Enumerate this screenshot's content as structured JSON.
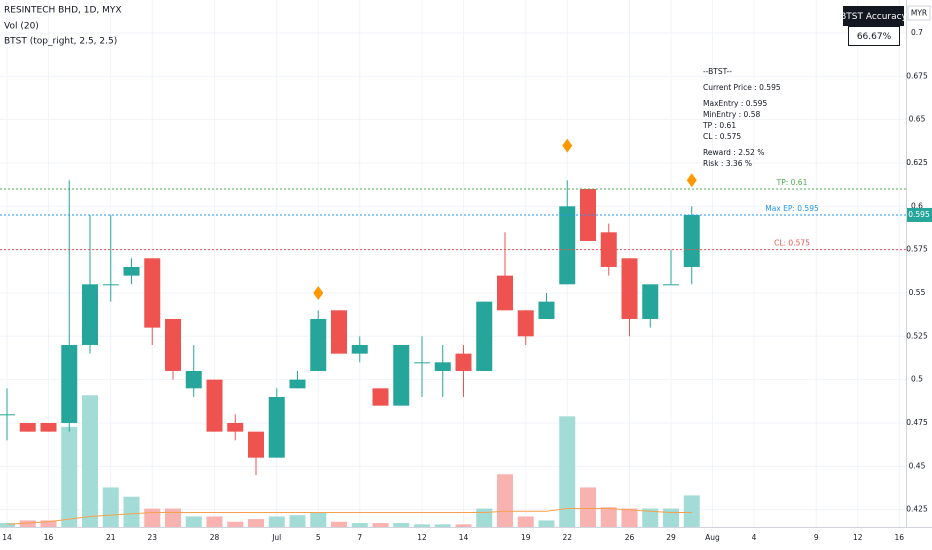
{
  "chart_data": {
    "type": "candlestick",
    "title": "RESINTECH BHD, 1D, MYX",
    "indicators": [
      "Vol (20)",
      "BTST (top_right, 2.5, 2.5)"
    ],
    "currency": "MYR",
    "categories": [
      "14",
      null,
      "16",
      null,
      null,
      "21",
      null,
      "23",
      null,
      null,
      "28",
      null,
      null,
      "Jul",
      null,
      "5",
      null,
      "7",
      null,
      null,
      "12",
      null,
      "14",
      null,
      null,
      "19",
      null,
      "22",
      null,
      null,
      "26",
      null,
      "29",
      null,
      "Aug",
      null,
      "4",
      null,
      null,
      "9",
      null,
      "12",
      null,
      "16"
    ],
    "open": [
      0.48,
      0.475,
      0.475,
      0.475,
      0.52,
      0.555,
      0.56,
      0.57,
      0.535,
      0.495,
      0.5,
      0.475,
      0.47,
      0.455,
      0.495,
      0.505,
      0.54,
      0.515,
      0.495,
      0.485,
      0.51,
      0.505,
      0.515,
      0.505,
      0.56,
      0.54,
      0.535,
      0.555,
      0.61,
      0.585,
      0.57,
      0.535,
      0.555,
      0.565,
      null,
      null,
      null,
      null,
      null,
      null,
      null,
      null,
      null,
      null
    ],
    "high": [
      0.495,
      0.475,
      0.475,
      0.615,
      0.595,
      0.595,
      0.57,
      0.57,
      0.535,
      0.52,
      0.5,
      0.48,
      0.47,
      0.495,
      0.505,
      0.54,
      0.54,
      0.525,
      0.495,
      0.52,
      0.525,
      0.52,
      0.52,
      0.545,
      0.585,
      0.54,
      0.55,
      0.615,
      0.61,
      0.59,
      0.57,
      0.555,
      0.575,
      0.6,
      null,
      null,
      null,
      null,
      null,
      null,
      null,
      null,
      null,
      null
    ],
    "low": [
      0.465,
      0.47,
      0.47,
      0.47,
      0.515,
      0.545,
      0.555,
      0.52,
      0.5,
      0.49,
      0.47,
      0.465,
      0.445,
      0.455,
      0.495,
      0.505,
      0.515,
      0.51,
      0.485,
      0.485,
      0.49,
      0.49,
      0.49,
      0.505,
      0.54,
      0.52,
      0.535,
      0.555,
      0.58,
      0.56,
      0.525,
      0.53,
      0.555,
      0.555,
      null,
      null,
      null,
      null,
      null,
      null,
      null,
      null,
      null,
      null
    ],
    "close": [
      0.48,
      0.47,
      0.47,
      0.52,
      0.555,
      0.555,
      0.565,
      0.53,
      0.505,
      0.505,
      0.47,
      0.47,
      0.455,
      0.49,
      0.5,
      0.535,
      0.515,
      0.52,
      0.485,
      0.52,
      0.51,
      0.51,
      0.505,
      0.545,
      0.54,
      0.525,
      0.545,
      0.6,
      0.58,
      0.565,
      0.535,
      0.555,
      0.555,
      0.595,
      null,
      null,
      null,
      null,
      null,
      null,
      null,
      null,
      null,
      null
    ],
    "volume": [
      3,
      5,
      5,
      76,
      100,
      30,
      23,
      14,
      14,
      8,
      8,
      4,
      6,
      8,
      9,
      11,
      4,
      3,
      3,
      3,
      2,
      2,
      2,
      14,
      40,
      8,
      5,
      84,
      30,
      15,
      14,
      14,
      14,
      24,
      null,
      null,
      null,
      null,
      null,
      null,
      null,
      null,
      null,
      null
    ],
    "volume_ma": [
      2,
      3,
      4,
      6,
      8,
      9,
      10,
      11,
      11,
      11,
      11,
      11,
      11,
      11,
      11,
      11,
      11,
      11,
      11,
      11,
      11,
      11,
      11,
      11,
      12,
      12,
      12,
      14,
      14,
      14,
      13,
      12,
      11,
      11,
      null,
      null,
      null,
      null,
      null,
      null,
      null,
      null,
      null,
      null
    ],
    "volume_lim": [
      0,
      400
    ],
    "signal": [
      null,
      null,
      null,
      null,
      null,
      null,
      null,
      null,
      null,
      null,
      null,
      null,
      null,
      null,
      null,
      0.55,
      null,
      null,
      null,
      null,
      null,
      null,
      null,
      null,
      null,
      null,
      null,
      0.635,
      null,
      null,
      null,
      null,
      null,
      0.615,
      null,
      null,
      null,
      null,
      null,
      null,
      null,
      null,
      null,
      null
    ],
    "levels": [
      {
        "label": "TP: 0.61",
        "value": 0.61,
        "color": "#4caf50"
      },
      {
        "label": "Max EP: 0.595",
        "value": 0.595,
        "color": "#2196f3"
      },
      {
        "label": "CL: 0.575",
        "value": 0.575,
        "color": "#ef5350"
      }
    ],
    "last_price": 0.595,
    "info_lines": [
      [
        "--BTST--"
      ],
      [
        "Current Price : 0.595"
      ],
      [
        "MaxEntry : 0.595",
        "MinEntry : 0.58",
        "TP : 0.61",
        "CL : 0.575"
      ],
      [
        "Reward : 2.52 %",
        "Risk : 3.36 %"
      ]
    ],
    "accuracy_title": "BTST Accuracy",
    "accuracy_value": "66.67%",
    "ylim": [
      0.415,
      0.719
    ],
    "yticks": [
      0.425,
      0.45,
      0.475,
      0.5,
      0.525,
      0.55,
      0.575,
      0.6,
      0.625,
      0.65,
      0.675,
      0.7
    ],
    "grid": true,
    "up_color": "#26a69a",
    "down_color": "#ef5350",
    "volume_up_color": "#a3dcd6",
    "volume_down_color": "#f8b2b0",
    "volume_ma_color": "#f6a14d",
    "signal_color": "#ff9800"
  }
}
